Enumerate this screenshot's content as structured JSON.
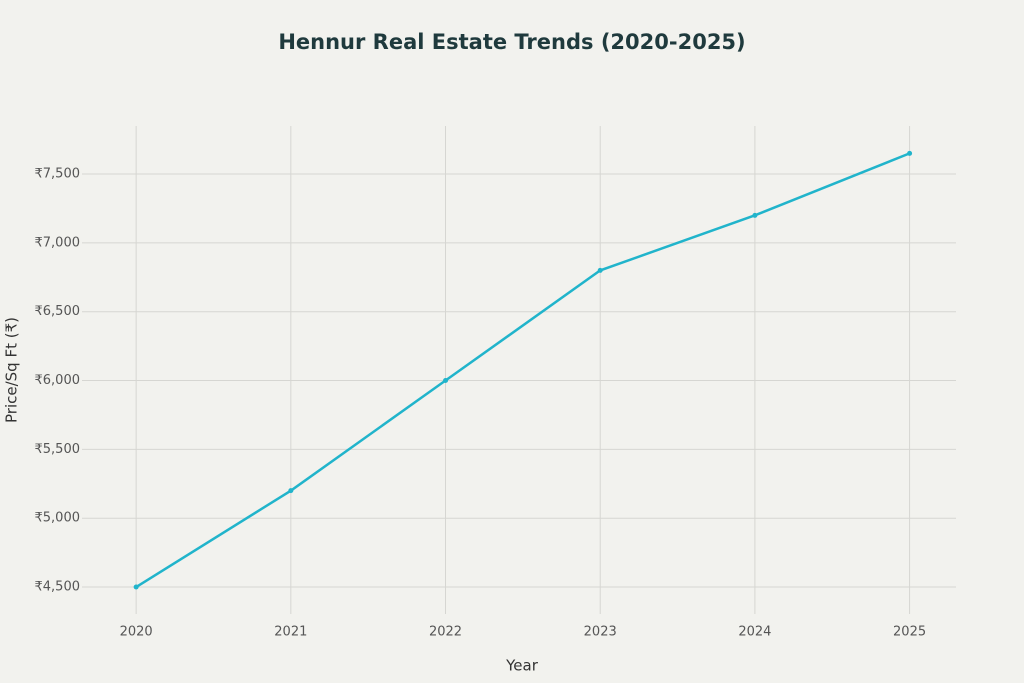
{
  "chart_data": {
    "type": "line",
    "title": "Hennur Real Estate Trends (2020-2025)",
    "x_label": "Year",
    "y_label": "Price/Sq Ft (₹)",
    "x": [
      2020,
      2021,
      2022,
      2023,
      2024,
      2025
    ],
    "series": [
      {
        "name": "Price/Sq Ft",
        "color": "#21b4cb",
        "values": [
          4500,
          5200,
          6000,
          6800,
          7200,
          7650
        ]
      }
    ],
    "xlim": [
      2019.65,
      2025.3
    ],
    "xticks": [
      2020,
      2021,
      2022,
      2023,
      2024,
      2025
    ],
    "ylim": [
      4304,
      7849
    ],
    "yticks": [
      {
        "value": 4500,
        "label": "₹4,500"
      },
      {
        "value": 5000,
        "label": "₹5,000"
      },
      {
        "value": 5500,
        "label": "₹5,500"
      },
      {
        "value": 6000,
        "label": "₹6,000"
      },
      {
        "value": 6500,
        "label": "₹6,500"
      },
      {
        "value": 7000,
        "label": "₹7,000"
      },
      {
        "value": 7500,
        "label": "₹7,500"
      }
    ],
    "grid": true
  }
}
